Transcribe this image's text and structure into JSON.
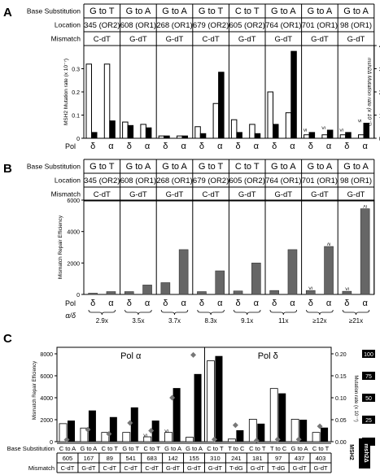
{
  "panels": [
    {
      "id": "A",
      "rows": [
        {
          "label": "Base Substitution",
          "cells": [
            "G to T",
            "G to A",
            "G to A",
            "G to T",
            "C to T",
            "G to A",
            "G to A",
            "G to A"
          ]
        },
        {
          "label": "Location",
          "cells": [
            "345 (OR2)",
            "608 (OR1)",
            "268 (OR1)",
            "679 (OR2)",
            "605 (OR2)",
            "764 (OR1)",
            "701 (OR1)",
            "98 (OR1)"
          ]
        },
        {
          "label": "Mismatch",
          "cells": [
            "C-dT",
            "G-dT",
            "G-dT",
            "C-dT",
            "G-dT",
            "G-dT",
            "G-dT",
            "G-dT"
          ]
        }
      ]
    },
    {
      "id": "B",
      "rows": [
        {
          "label": "Base Substitution",
          "cells": [
            "G to T",
            "G to A",
            "G to A",
            "G to T",
            "C to T",
            "G to A",
            "G to A",
            "G to A"
          ]
        },
        {
          "label": "Location",
          "cells": [
            "345 (OR2)",
            "608 (OR1)",
            "268 (OR1)",
            "679 (OR2)",
            "605 (OR2)",
            "764 (OR1)",
            "701 (OR1)",
            "98 (OR1)"
          ]
        },
        {
          "label": "Mismatch",
          "cells": [
            "C-dT",
            "G-dT",
            "G-dT",
            "C-dT",
            "G-dT",
            "G-dT",
            "G-dT",
            "G-dT"
          ]
        }
      ]
    },
    {
      "id": "C",
      "headers": [
        "Pol α",
        "Pol δ"
      ],
      "rows": [
        {
          "label": "Base Substitution",
          "cells": [
            "C to A",
            "G to A",
            "C to T",
            "G to T",
            "C to T",
            "G to A",
            "G to A",
            "C to T",
            "T to C",
            "C to T",
            "T to C",
            "G to A",
            "C to T"
          ]
        },
        {
          "label": "",
          "cells": [
            "605",
            "167",
            "89",
            "541",
            "683",
            "142",
            "155",
            "310",
            "241",
            "181",
            "97",
            "437",
            "403"
          ]
        },
        {
          "label": "Mismatch",
          "cells": [
            "C-dT",
            "G-dT",
            "C-dT",
            "C-dT",
            "C-dT",
            "G-dT",
            "G-dT",
            "G-dT",
            "T-dG",
            "G-dT",
            "T-dG",
            "G-dT",
            "G-dT"
          ]
        }
      ],
      "legend": [
        "MSH2",
        "msh2Δ"
      ]
    }
  ],
  "pol_symbols": {
    "row_label": "Pol",
    "delta": "δ",
    "alpha": "α"
  },
  "ratio_label": "α/δ",
  "chart_data": [
    {
      "panel": "A",
      "type": "bar",
      "categories": [
        "δ",
        "α",
        "δ",
        "α",
        "δ",
        "α",
        "δ",
        "α",
        "δ",
        "α",
        "δ",
        "α",
        "δ",
        "α",
        "δ",
        "α"
      ],
      "series": [
        {
          "name": "MSH2",
          "axis": "left",
          "color": "#ffffff",
          "values": [
            0.32,
            0.32,
            0.07,
            0.06,
            0.01,
            0.01,
            0.05,
            0.15,
            0.08,
            0.06,
            0.2,
            0.11,
            0.015,
            0.015,
            0.015,
            0.015
          ]
        },
        {
          "name": "msh2",
          "axis": "right",
          "color": "#000000",
          "values": [
            25,
            75,
            55,
            45,
            10,
            10,
            20,
            285,
            25,
            20,
            60,
            375,
            25,
            35,
            25,
            65
          ]
        }
      ],
      "annotations": [
        {
          "bar": 12,
          "text": "≤"
        },
        {
          "bar": 13,
          "text": "≤"
        },
        {
          "bar": 14,
          "text": "≤"
        },
        {
          "bar": 15,
          "text": "≤"
        }
      ],
      "ylabel": "MSH2 Mutation rate (x 10⁻⁷)",
      "yticks": [
        "0",
        "0.1",
        "0.2",
        "0.3"
      ],
      "ylim": [
        0,
        0.4
      ],
      "ylabel_right": "msh2Δ Mutation rate (x 10⁻⁷)",
      "yticks_right": [
        "0",
        "100",
        "200",
        "300",
        "400"
      ],
      "ylim_right": [
        0,
        400
      ],
      "xlabel": "Pol"
    },
    {
      "panel": "B",
      "type": "bar",
      "categories": [
        "δ",
        "α",
        "δ",
        "α",
        "δ",
        "α",
        "δ",
        "α",
        "δ",
        "α",
        "δ",
        "α",
        "δ",
        "α",
        "δ",
        "α"
      ],
      "series": [
        {
          "name": "Mismatch Repair Efficiency",
          "color": "#666666",
          "values": [
            80,
            180,
            180,
            600,
            750,
            2850,
            180,
            1500,
            220,
            2000,
            250,
            2850,
            250,
            3050,
            200,
            5450
          ]
        }
      ],
      "annotations": [
        {
          "bar": 12,
          "text": "≤"
        },
        {
          "bar": 13,
          "text": "≥"
        },
        {
          "bar": 14,
          "text": "≤"
        },
        {
          "bar": 15,
          "text": "≥"
        }
      ],
      "ratios": [
        "2.9x",
        "3.5x",
        "3.7x",
        "8.3x",
        "9.1x",
        "11x",
        "≥12x",
        "≥21x"
      ],
      "ylabel": "Mismatch Repair Efficiency",
      "yticks": [
        "0",
        "2000",
        "4000",
        "6000"
      ],
      "ylim": [
        0,
        6000
      ],
      "xlabel": "Pol"
    },
    {
      "panel": "C",
      "type": "bar",
      "categories": [
        "605",
        "167",
        "89",
        "541",
        "683",
        "142",
        "155",
        "310",
        "241",
        "181",
        "97",
        "437",
        "403"
      ],
      "series": [
        {
          "name": "MSH2",
          "axis": "right",
          "color": "#ffffff",
          "values": [
            0.041,
            0.031,
            0.021,
            0.021,
            0.011,
            0.021,
            0.01,
            0.184,
            0.006,
            0.051,
            0.121,
            0.051,
            0.021
          ]
        },
        {
          "name": "msh2Δ",
          "axis": "right",
          "color": "#000000",
          "values": [
            0.048,
            0.071,
            0.056,
            0.078,
            0.048,
            0.122,
            0.154,
            0.195,
            0.026,
            0.041,
            0.11,
            0.05,
            0.032
          ]
        },
        {
          "name": "Mismatch Repair Efficiency",
          "axis": "left",
          "type": "scatter",
          "marker": "diamond",
          "color": "#777777",
          "values": [
            180,
            1100,
            700,
            1700,
            1000,
            4000,
            7900,
            200,
            1500,
            100,
            200,
            200,
            1400
          ]
        }
      ],
      "annotations": [
        {
          "bar": 4,
          "text": "≤"
        },
        {
          "bar": 5,
          "text": "≤"
        }
      ],
      "ylabel": "Mismatch Repair Efficiency",
      "yticks": [
        "0",
        "2000",
        "4000",
        "6000",
        "8000"
      ],
      "ylim": [
        0,
        8000
      ],
      "ylabel_right": "Mutation rate (x 10⁻⁷)",
      "yticks_right": [
        "0.00",
        "0.05",
        "0.10",
        "0.15",
        "0.20"
      ],
      "ylim_right": [
        0,
        0.2
      ],
      "yticks_right_black": [
        "0",
        "25",
        "50",
        "75",
        "100"
      ]
    }
  ]
}
